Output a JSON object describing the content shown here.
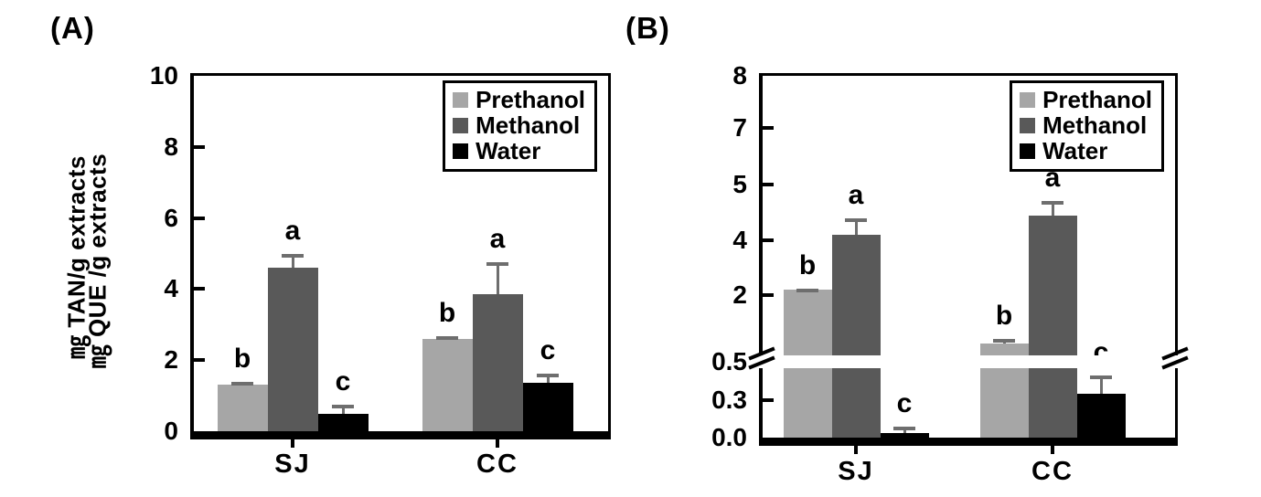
{
  "figure": {
    "description": "Two-panel bar chart comparing extraction solvents for two samples",
    "categories": [
      "SJ",
      "CC"
    ],
    "legend_labels": [
      "Prethanol",
      "Methanol",
      "Water"
    ]
  },
  "colors": {
    "prethanol": "#a6a6a6",
    "methanol": "#595959",
    "water": "#000000",
    "error_bar": "#6e6e6e",
    "axis": "#000000",
    "background": "#ffffff"
  },
  "chart_data": [
    {
      "type": "bar",
      "title": "(A)",
      "ylabel": "㎎ TAN/g extracts",
      "categories": [
        "SJ",
        "CC"
      ],
      "series": [
        {
          "name": "Prethanol",
          "color_key": "prethanol",
          "values": [
            1.3,
            2.6
          ],
          "errors": [
            0.1,
            0.08
          ],
          "sig_letters": [
            "b",
            "b"
          ]
        },
        {
          "name": "Methanol",
          "color_key": "methanol",
          "values": [
            4.6,
            3.85
          ],
          "errors": [
            0.4,
            0.9
          ],
          "sig_letters": [
            "a",
            "a"
          ]
        },
        {
          "name": "Water",
          "color_key": "water",
          "values": [
            0.5,
            1.35
          ],
          "errors": [
            0.25,
            0.28
          ],
          "sig_letters": [
            "c",
            "c"
          ]
        }
      ],
      "ylim": [
        0,
        10
      ],
      "yticks": [
        0,
        2,
        4,
        6,
        8,
        10
      ],
      "grid": false,
      "legend_position": "top-right",
      "axis_break": null
    },
    {
      "type": "bar",
      "title": "(B)",
      "ylabel": "㎎ QUE /g extracts",
      "categories": [
        "SJ",
        "CC"
      ],
      "series": [
        {
          "name": "Prethanol",
          "color_key": "prethanol",
          "values": [
            2.2,
            0.8
          ],
          "errors": [
            0.05,
            0.1
          ],
          "sig_letters": [
            "b",
            "b"
          ]
        },
        {
          "name": "Methanol",
          "color_key": "methanol",
          "values": [
            4.1,
            4.45
          ],
          "errors": [
            0.3,
            0.25
          ],
          "sig_letters": [
            "a",
            "a"
          ]
        },
        {
          "name": "Water",
          "color_key": "water",
          "values": [
            0.04,
            0.33
          ],
          "errors": [
            0.05,
            0.08
          ],
          "sig_letters": [
            "c",
            "c"
          ]
        }
      ],
      "ylim": [
        0,
        8
      ],
      "grid": false,
      "legend_position": "top-right",
      "axis_break": {
        "break_value": 0.5,
        "upper_tick_labels": [
          8,
          7,
          5,
          4,
          2
        ],
        "break_label": "0.5",
        "lower_tick_labels": [
          0.3,
          0.0
        ]
      }
    }
  ]
}
